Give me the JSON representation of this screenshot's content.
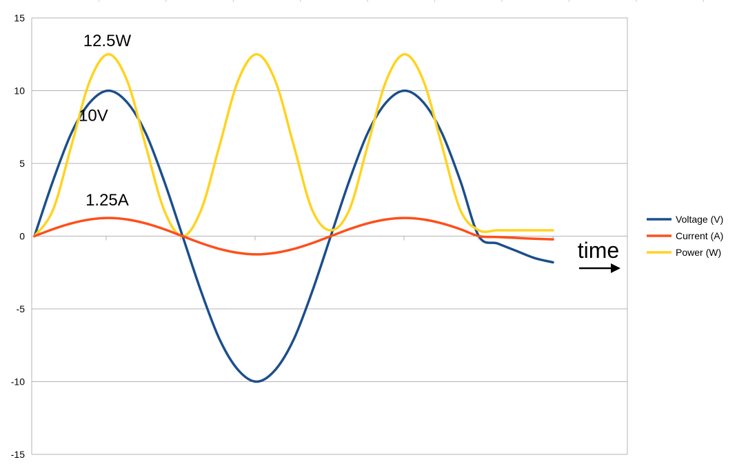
{
  "chart_data": {
    "type": "line",
    "title": "",
    "xlabel": "time",
    "ylabel": "",
    "ylim": [
      -15,
      15
    ],
    "yticks": [
      15,
      10,
      5,
      0,
      -5,
      -10,
      -15
    ],
    "grid": true,
    "legend": "right",
    "series": [
      {
        "name": "Voltage (V)",
        "color": "#1b4e8c",
        "x": [
          0,
          0.25,
          0.5,
          0.75,
          1,
          1.25,
          1.5,
          1.75,
          2,
          2.25,
          2.5,
          2.75,
          3,
          3.25,
          3.5,
          3.75,
          4,
          4.25,
          4.5,
          4.75,
          5,
          5.25,
          5.5,
          5.75,
          6,
          6.25,
          6.5,
          6.75,
          7
        ],
        "values": [
          0,
          3.8,
          7.1,
          9.2,
          10.0,
          9.2,
          7.1,
          3.8,
          0,
          -3.8,
          -7.1,
          -9.2,
          -10.0,
          -9.2,
          -7.1,
          -3.8,
          0,
          3.8,
          7.1,
          9.2,
          10.0,
          9.2,
          7.1,
          3.8,
          0,
          -0.5,
          -1.0,
          -1.5,
          -1.8
        ]
      },
      {
        "name": "Current (A)",
        "color": "#ff4e1a",
        "x": [
          0,
          0.25,
          0.5,
          0.75,
          1,
          1.25,
          1.5,
          1.75,
          2,
          2.25,
          2.5,
          2.75,
          3,
          3.25,
          3.5,
          3.75,
          4,
          4.25,
          4.5,
          4.75,
          5,
          5.25,
          5.5,
          5.75,
          6,
          6.25,
          6.5,
          6.75,
          7
        ],
        "values": [
          0,
          0.48,
          0.88,
          1.15,
          1.25,
          1.15,
          0.88,
          0.48,
          0,
          -0.48,
          -0.88,
          -1.15,
          -1.25,
          -1.15,
          -0.88,
          -0.48,
          0,
          0.48,
          0.88,
          1.15,
          1.25,
          1.15,
          0.88,
          0.48,
          0,
          -0.06,
          -0.12,
          -0.18,
          -0.22
        ]
      },
      {
        "name": "Power (W)",
        "color": "#ffd320",
        "x": [
          0,
          0.25,
          0.5,
          0.75,
          1,
          1.25,
          1.5,
          1.75,
          2,
          2.25,
          2.5,
          2.75,
          3,
          3.25,
          3.5,
          3.75,
          4,
          4.25,
          4.5,
          4.75,
          5,
          5.25,
          5.5,
          5.75,
          6,
          6.25,
          6.5,
          6.75,
          7
        ],
        "values": [
          0,
          1.8,
          6.25,
          10.7,
          12.5,
          10.7,
          6.25,
          1.8,
          0,
          1.8,
          6.25,
          10.7,
          12.5,
          10.7,
          6.25,
          1.8,
          0.4,
          1.8,
          6.25,
          10.7,
          12.5,
          10.7,
          6.25,
          1.8,
          0.4,
          0.4,
          0.4,
          0.4,
          0.4
        ]
      }
    ],
    "annotations": [
      {
        "text": "12.5W",
        "x": 1,
        "y": 12.5
      },
      {
        "text": "10V",
        "x": 1,
        "y": 10
      },
      {
        "text": "1.25A",
        "x": 1,
        "y": 1.25
      }
    ]
  }
}
